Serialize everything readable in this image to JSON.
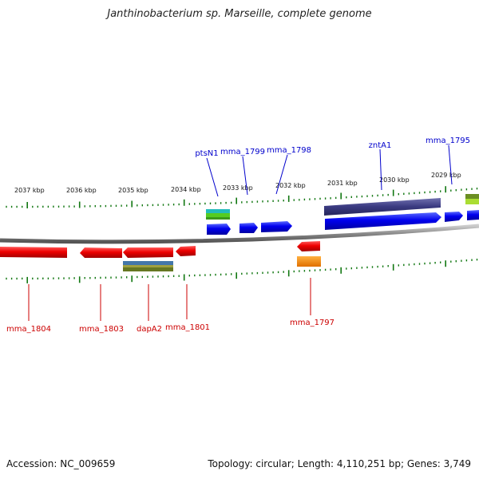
{
  "title": "Janthinobacterium sp. Marseille, complete genome",
  "footer": {
    "accession": "Accession: NC_009659",
    "summary": "Topology: circular; Length: 4,110,251 bp; Genes: 3,749"
  },
  "colors": {
    "forward_label": "#0000cc",
    "reverse_label": "#cc0000",
    "tick": "#117711",
    "backbone": "#888888"
  },
  "kbp_labels": [
    "2037 kbp",
    "2036 kbp",
    "2035 kbp",
    "2034 kbp",
    "2033 kbp",
    "2032 kbp",
    "2031 kbp",
    "2030 kbp",
    "2029 kbp"
  ],
  "forward_gene_labels": [
    "ptsN1",
    "mma_1799",
    "mma_1798",
    "zntA1",
    "mma_1795"
  ],
  "reverse_gene_labels": [
    "mma_1804",
    "mma_1803",
    "dapA2",
    "mma_1801",
    "mma_1797"
  ]
}
